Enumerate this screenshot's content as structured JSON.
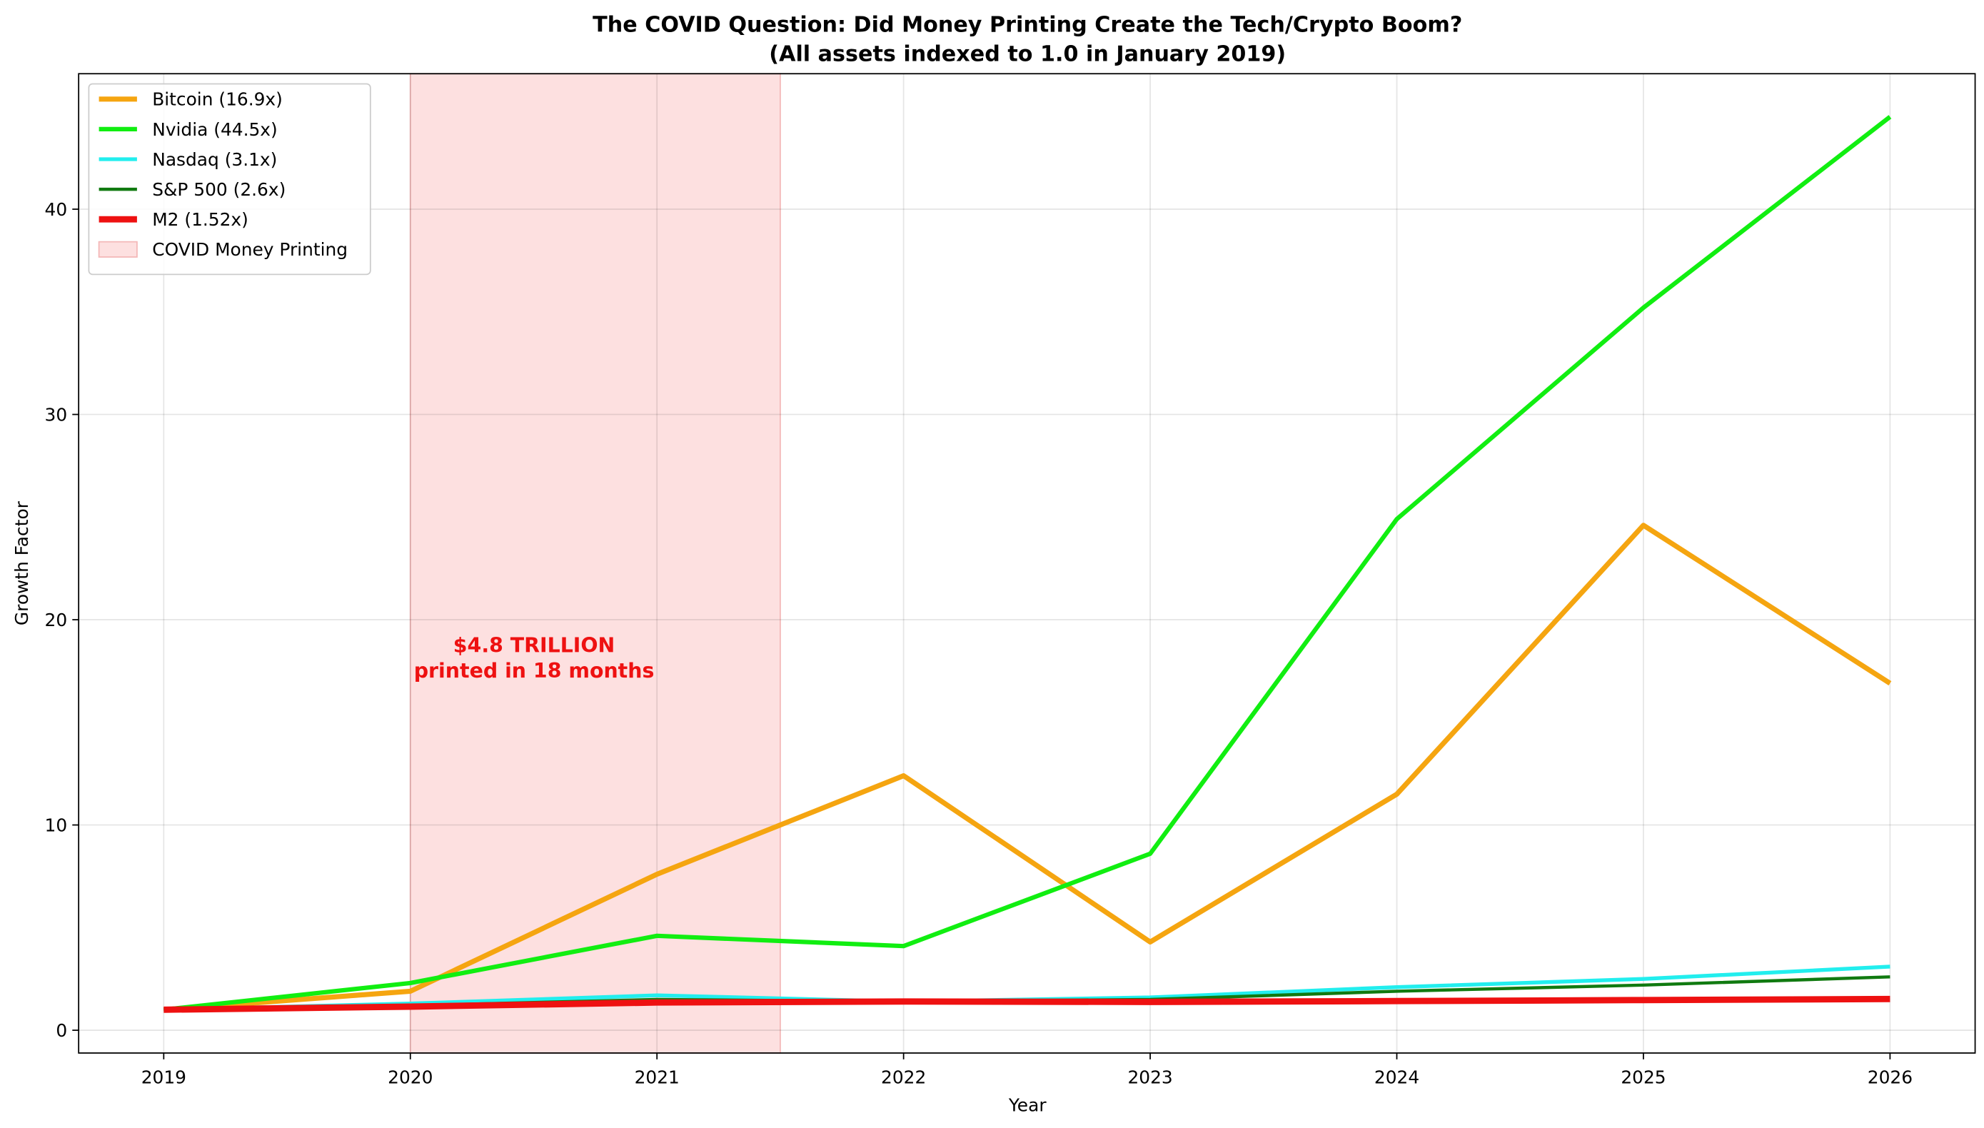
{
  "chart_data": {
    "type": "line",
    "title": "The COVID Question: Did Money Printing Create the Tech/Crypto Boom?",
    "subtitle": "(All assets indexed to 1.0 in January 2019)",
    "x_label": "Year",
    "y_label": "Growth Factor",
    "x": [
      2019,
      2020,
      2021,
      2022,
      2023,
      2024,
      2025,
      2026
    ],
    "series": [
      {
        "name": "Bitcoin (16.9x)",
        "color": "#f5a510",
        "values": [
          1,
          1.9,
          7.6,
          12.4,
          4.3,
          11.5,
          24.6,
          16.9
        ]
      },
      {
        "name": "Nvidia (44.5x)",
        "color": "#11ee11",
        "values": [
          1,
          2.3,
          4.6,
          4.1,
          8.6,
          24.9,
          35.2,
          44.5
        ]
      },
      {
        "name": "Nasdaq (3.1x)",
        "color": "#22eeee",
        "values": [
          1,
          1.3,
          1.7,
          1.4,
          1.6,
          2.1,
          2.5,
          3.1
        ]
      },
      {
        "name": "S&P 500 (2.6x)",
        "color": "#107a10",
        "values": [
          1,
          1.2,
          1.5,
          1.4,
          1.5,
          1.9,
          2.2,
          2.6
        ]
      },
      {
        "name": "M2 (1.52x)",
        "color": "#ee1111",
        "values": [
          1,
          1.15,
          1.35,
          1.4,
          1.38,
          1.42,
          1.47,
          1.52
        ]
      }
    ],
    "shade": {
      "label": "COVID Money Printing",
      "x": [
        2020,
        2021.5
      ],
      "color": "#fde0e0"
    },
    "annotation": [
      "$4.8 TRILLION",
      "printed in 18 months"
    ],
    "xlim": [
      2018.655,
      2026.345
    ],
    "ylim": [
      -1.11,
      46.6
    ],
    "xticks": [
      2019,
      2020,
      2021,
      2022,
      2023,
      2024,
      2025,
      2026
    ],
    "yticks": [
      0,
      10,
      20,
      30,
      40
    ],
    "grid": true,
    "legend": "upper left"
  }
}
